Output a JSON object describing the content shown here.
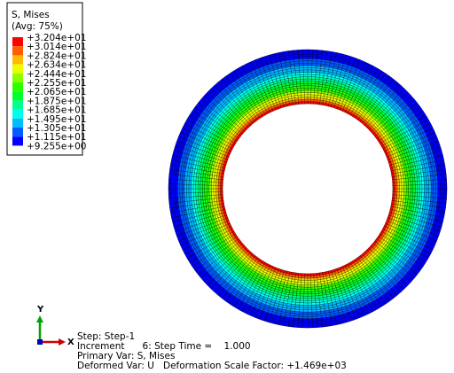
{
  "legend": {
    "title": "S, Mises",
    "subtitle": "(Avg: 75%)",
    "labels": [
      "+3.204e+01",
      "+3.014e+01",
      "+2.824e+01",
      "+2.634e+01",
      "+2.444e+01",
      "+2.255e+01",
      "+2.065e+01",
      "+1.875e+01",
      "+1.685e+01",
      "+1.495e+01",
      "+1.305e+01",
      "+1.115e+01",
      "+9.255e+00"
    ],
    "colors": [
      "#ff0000",
      "#ff5d00",
      "#ffb900",
      "#e8ff00",
      "#8bff00",
      "#2eff00",
      "#00ff2e",
      "#00ff8b",
      "#00ffe8",
      "#00b9ff",
      "#005dff",
      "#0000ff"
    ]
  },
  "triad": {
    "x": "X",
    "y": "Y"
  },
  "info": [
    "Step: Step-1",
    "Increment      6: Step Time =    1.000",
    "Primary Var: S, Mises",
    "Deformed Var: U   Deformation Scale Factor: +1.469e+03"
  ]
}
